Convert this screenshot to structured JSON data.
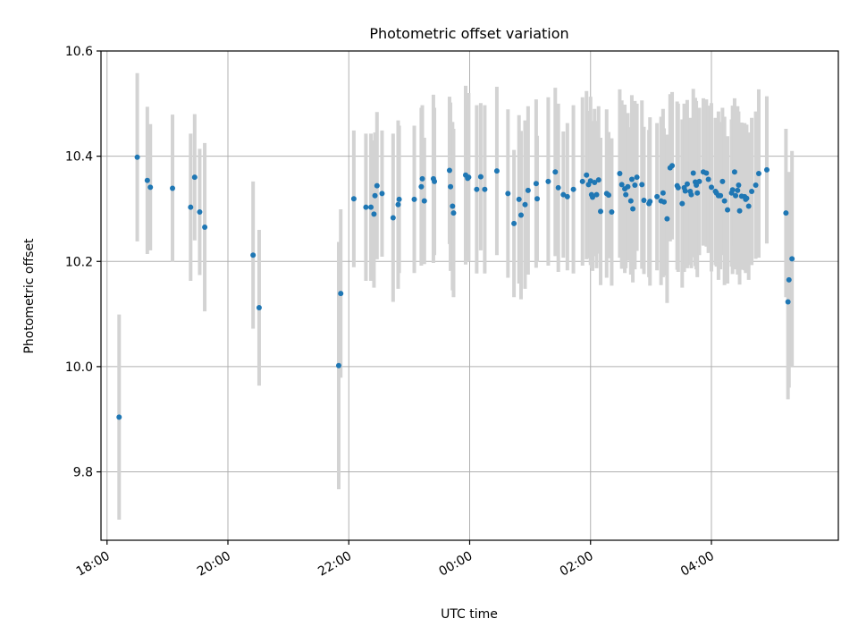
{
  "chart_data": {
    "type": "scatter",
    "title": "Photometric offset variation",
    "xlabel": "UTC time",
    "ylabel": "Photometric offset",
    "xlim": [
      "17:54",
      "06:06"
    ],
    "ylim": [
      9.67,
      10.6
    ],
    "grid": true,
    "xticks": [
      "18:00",
      "20:00",
      "22:00",
      "00:00",
      "02:00",
      "04:00"
    ],
    "yticks": [
      9.8,
      10.0,
      10.2,
      10.4,
      10.6
    ],
    "marker_color": "#1f77b4",
    "errorbar_color": "#d3d3d3",
    "series": [
      {
        "x": [
          "18:12",
          "18:30",
          "18:40",
          "18:43",
          "19:05",
          "19:23",
          "19:27",
          "19:32",
          "19:37",
          "20:25",
          "20:31",
          "21:50",
          "21:52",
          "22:05",
          "22:17",
          "22:22",
          "22:25",
          "22:26",
          "22:28",
          "22:33",
          "22:44",
          "22:49",
          "22:50",
          "23:05",
          "23:12",
          "23:13",
          "23:15",
          "23:24",
          "23:25",
          "23:40",
          "23:41",
          "23:43",
          "23:44",
          "23:56",
          "23:58",
          "23:59",
          "24:07",
          "24:11",
          "24:15",
          "24:27",
          "24:38",
          "24:44",
          "24:49",
          "24:51",
          "24:55",
          "24:58",
          "25:06",
          "25:07",
          "25:18",
          "25:25",
          "25:28",
          "25:33",
          "25:37",
          "25:43",
          "25:52",
          "25:56",
          "25:58",
          "26:00",
          "26:01",
          "26:02",
          "26:04",
          "26:06",
          "26:08",
          "26:10",
          "26:16",
          "26:18",
          "26:21",
          "26:29",
          "26:31",
          "26:34",
          "26:35",
          "26:37",
          "26:40",
          "26:41",
          "26:42",
          "26:44",
          "26:46",
          "26:51",
          "26:53",
          "26:58",
          "26:59",
          "27:06",
          "27:10",
          "27:12",
          "27:13",
          "27:16",
          "27:19",
          "27:21",
          "27:26",
          "27:27",
          "27:31",
          "27:33",
          "27:34",
          "27:36",
          "27:39",
          "27:40",
          "27:42",
          "27:44",
          "27:45",
          "27:46",
          "27:48",
          "27:52",
          "27:55",
          "27:57",
          "28:00",
          "28:04",
          "28:05",
          "28:07",
          "28:09",
          "28:11",
          "28:13",
          "28:16",
          "28:20",
          "28:21",
          "28:23",
          "28:24",
          "28:26",
          "28:27",
          "28:28",
          "28:30",
          "28:33",
          "28:34",
          "28:35",
          "28:37",
          "28:40",
          "28:44",
          "28:47",
          "28:55",
          "29:14",
          "29:16",
          "29:17",
          "29:20"
        ],
        "y": [
          9.904,
          10.398,
          10.354,
          10.341,
          10.339,
          10.303,
          10.36,
          10.294,
          10.265,
          10.212,
          10.112,
          10.002,
          10.139,
          10.319,
          10.303,
          10.303,
          10.29,
          10.325,
          10.344,
          10.329,
          10.283,
          10.308,
          10.318,
          10.318,
          10.342,
          10.357,
          10.315,
          10.357,
          10.352,
          10.373,
          10.342,
          10.305,
          10.292,
          10.364,
          10.358,
          10.36,
          10.337,
          10.361,
          10.337,
          10.372,
          10.329,
          10.272,
          10.318,
          10.288,
          10.308,
          10.335,
          10.348,
          10.319,
          10.352,
          10.37,
          10.34,
          10.327,
          10.323,
          10.337,
          10.352,
          10.364,
          10.346,
          10.353,
          10.327,
          10.322,
          10.35,
          10.327,
          10.355,
          10.295,
          10.329,
          10.326,
          10.294,
          10.367,
          10.346,
          10.338,
          10.327,
          10.342,
          10.315,
          10.356,
          10.3,
          10.345,
          10.36,
          10.346,
          10.316,
          10.31,
          10.314,
          10.323,
          10.315,
          10.33,
          10.313,
          10.281,
          10.378,
          10.382,
          10.344,
          10.34,
          10.31,
          10.34,
          10.334,
          10.347,
          10.333,
          10.327,
          10.368,
          10.351,
          10.345,
          10.33,
          10.352,
          10.37,
          10.368,
          10.356,
          10.341,
          10.333,
          10.33,
          10.325,
          10.325,
          10.352,
          10.315,
          10.298,
          10.33,
          10.336,
          10.37,
          10.325,
          10.335,
          10.345,
          10.296,
          10.324,
          10.323,
          10.318,
          10.32,
          10.305,
          10.333,
          10.345,
          10.367,
          10.374,
          10.292,
          10.123,
          10.165,
          10.205
        ],
        "yerr": [
          0.195,
          0.16,
          0.14,
          0.12,
          0.14,
          0.14,
          0.12,
          0.12,
          0.16,
          0.14,
          0.148,
          0.235,
          0.16,
          0.13,
          0.14,
          0.14,
          0.14,
          0.12,
          0.14,
          0.12,
          0.16,
          0.16,
          0.14,
          0.14,
          0.15,
          0.14,
          0.12,
          0.16,
          0.14,
          0.14,
          0.16,
          0.16,
          0.16,
          0.17,
          0.14,
          0.16,
          0.16,
          0.14,
          0.16,
          0.16,
          0.16,
          0.14,
          0.16,
          0.16,
          0.16,
          0.16,
          0.16,
          0.12,
          0.16,
          0.16,
          0.16,
          0.12,
          0.14,
          0.16,
          0.16,
          0.16,
          0.14,
          0.16,
          0.14,
          0.14,
          0.14,
          0.14,
          0.14,
          0.14,
          0.16,
          0.12,
          0.14,
          0.16,
          0.16,
          0.16,
          0.14,
          0.14,
          0.14,
          0.16,
          0.14,
          0.16,
          0.14,
          0.16,
          0.14,
          0.14,
          0.16,
          0.14,
          0.16,
          0.16,
          0.14,
          0.16,
          0.14,
          0.14,
          0.16,
          0.16,
          0.16,
          0.16,
          0.14,
          0.16,
          0.14,
          0.14,
          0.16,
          0.16,
          0.16,
          0.16,
          0.14,
          0.14,
          0.14,
          0.14,
          0.16,
          0.14,
          0.14,
          0.16,
          0.14,
          0.14,
          0.16,
          0.14,
          0.14,
          0.16,
          0.14,
          0.14,
          0.16,
          0.14,
          0.14,
          0.14,
          0.14,
          0.14,
          0.14,
          0.14,
          0.14,
          0.14,
          0.16,
          0.14,
          0.16,
          0.185,
          0.205,
          0.205
        ]
      }
    ]
  }
}
